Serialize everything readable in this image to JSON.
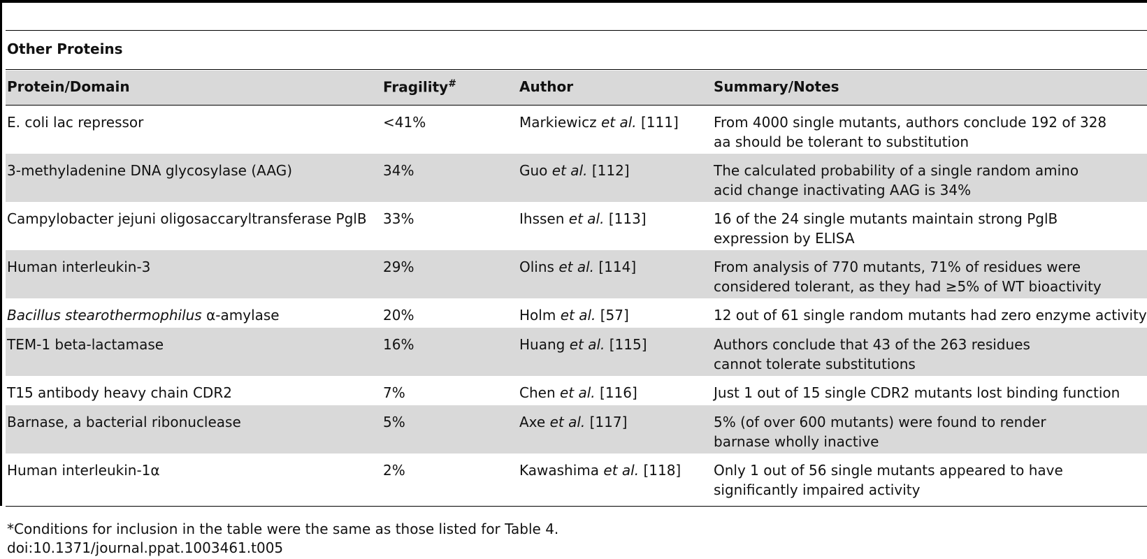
{
  "table": {
    "section_title": "Other Proteins",
    "headers": {
      "protein": "Protein/Domain",
      "fragility": "Fragility",
      "fragility_mark": "#",
      "author": "Author",
      "summary": "Summary/Notes"
    },
    "rows": [
      {
        "protein_pre": "E. coli lac repressor",
        "protein_italic": "",
        "protein_post": "",
        "fragility": "<41%",
        "author_name": "Markiewicz",
        "author_etal": "et al.",
        "author_ref": "[111]",
        "summary_line1": "From 4000 single mutants, authors conclude 192 of 328",
        "summary_line2": "aa should be tolerant to substitution"
      },
      {
        "protein_pre": "3-methyladenine DNA glycosylase (AAG)",
        "protein_italic": "",
        "protein_post": "",
        "fragility": "34%",
        "author_name": "Guo",
        "author_etal": "et al.",
        "author_ref": "[112]",
        "summary_line1": "The calculated probability of a single random amino",
        "summary_line2": "acid change inactivating AAG is 34%"
      },
      {
        "protein_pre": "Campylobacter jejuni oligosaccaryltransferase PglB",
        "protein_italic": "",
        "protein_post": "",
        "fragility": "33%",
        "author_name": "Ihssen",
        "author_etal": "et al.",
        "author_ref": "[113]",
        "summary_line1": "16 of the 24 single mutants maintain strong PglB",
        "summary_line2": "expression by ELISA"
      },
      {
        "protein_pre": "Human interleukin-3",
        "protein_italic": "",
        "protein_post": "",
        "fragility": "29%",
        "author_name": "Olins",
        "author_etal": "et al.",
        "author_ref": "[114]",
        "summary_line1": "From analysis of 770 mutants, 71% of residues were",
        "summary_line2": "considered tolerant, as they had ≥5% of WT bioactivity"
      },
      {
        "protein_pre": "",
        "protein_italic": "Bacillus stearothermophilus",
        "protein_post": " α-amylase",
        "fragility": "20%",
        "author_name": "Holm",
        "author_etal": "et al.",
        "author_ref": "[57]",
        "summary_line1": "12 out of 61 single random mutants had zero enzyme activity",
        "summary_line2": ""
      },
      {
        "protein_pre": "TEM-1 beta-lactamase",
        "protein_italic": "",
        "protein_post": "",
        "fragility": "16%",
        "author_name": "Huang",
        "author_etal": "et al.",
        "author_ref": "[115]",
        "summary_line1": "Authors conclude that 43 of the 263 residues",
        "summary_line2": "cannot tolerate substitutions"
      },
      {
        "protein_pre": "T15 antibody heavy chain CDR2",
        "protein_italic": "",
        "protein_post": "",
        "fragility": "7%",
        "author_name": "Chen",
        "author_etal": "et al.",
        "author_ref": "[116]",
        "summary_line1": "Just 1 out of 15 single CDR2 mutants lost binding function",
        "summary_line2": ""
      },
      {
        "protein_pre": "Barnase, a bacterial ribonuclease",
        "protein_italic": "",
        "protein_post": "",
        "fragility": "5%",
        "author_name": "Axe",
        "author_etal": "et al.",
        "author_ref": "[117]",
        "summary_line1": "5% (of over 600 mutants) were found to render",
        "summary_line2": "barnase wholly inactive"
      },
      {
        "protein_pre": "Human interleukin-1α",
        "protein_italic": "",
        "protein_post": "",
        "fragility": "2%",
        "author_name": "Kawashima",
        "author_etal": "et al.",
        "author_ref": "[118]",
        "summary_line1": "Only 1 out of 56 single mutants appeared to have",
        "summary_line2": "significantly impaired activity"
      }
    ]
  },
  "footnotes": {
    "note": "*Conditions for inclusion in the table were the same as those listed for Table 4.",
    "doi": "doi:10.1371/journal.ppat.1003461.t005"
  }
}
